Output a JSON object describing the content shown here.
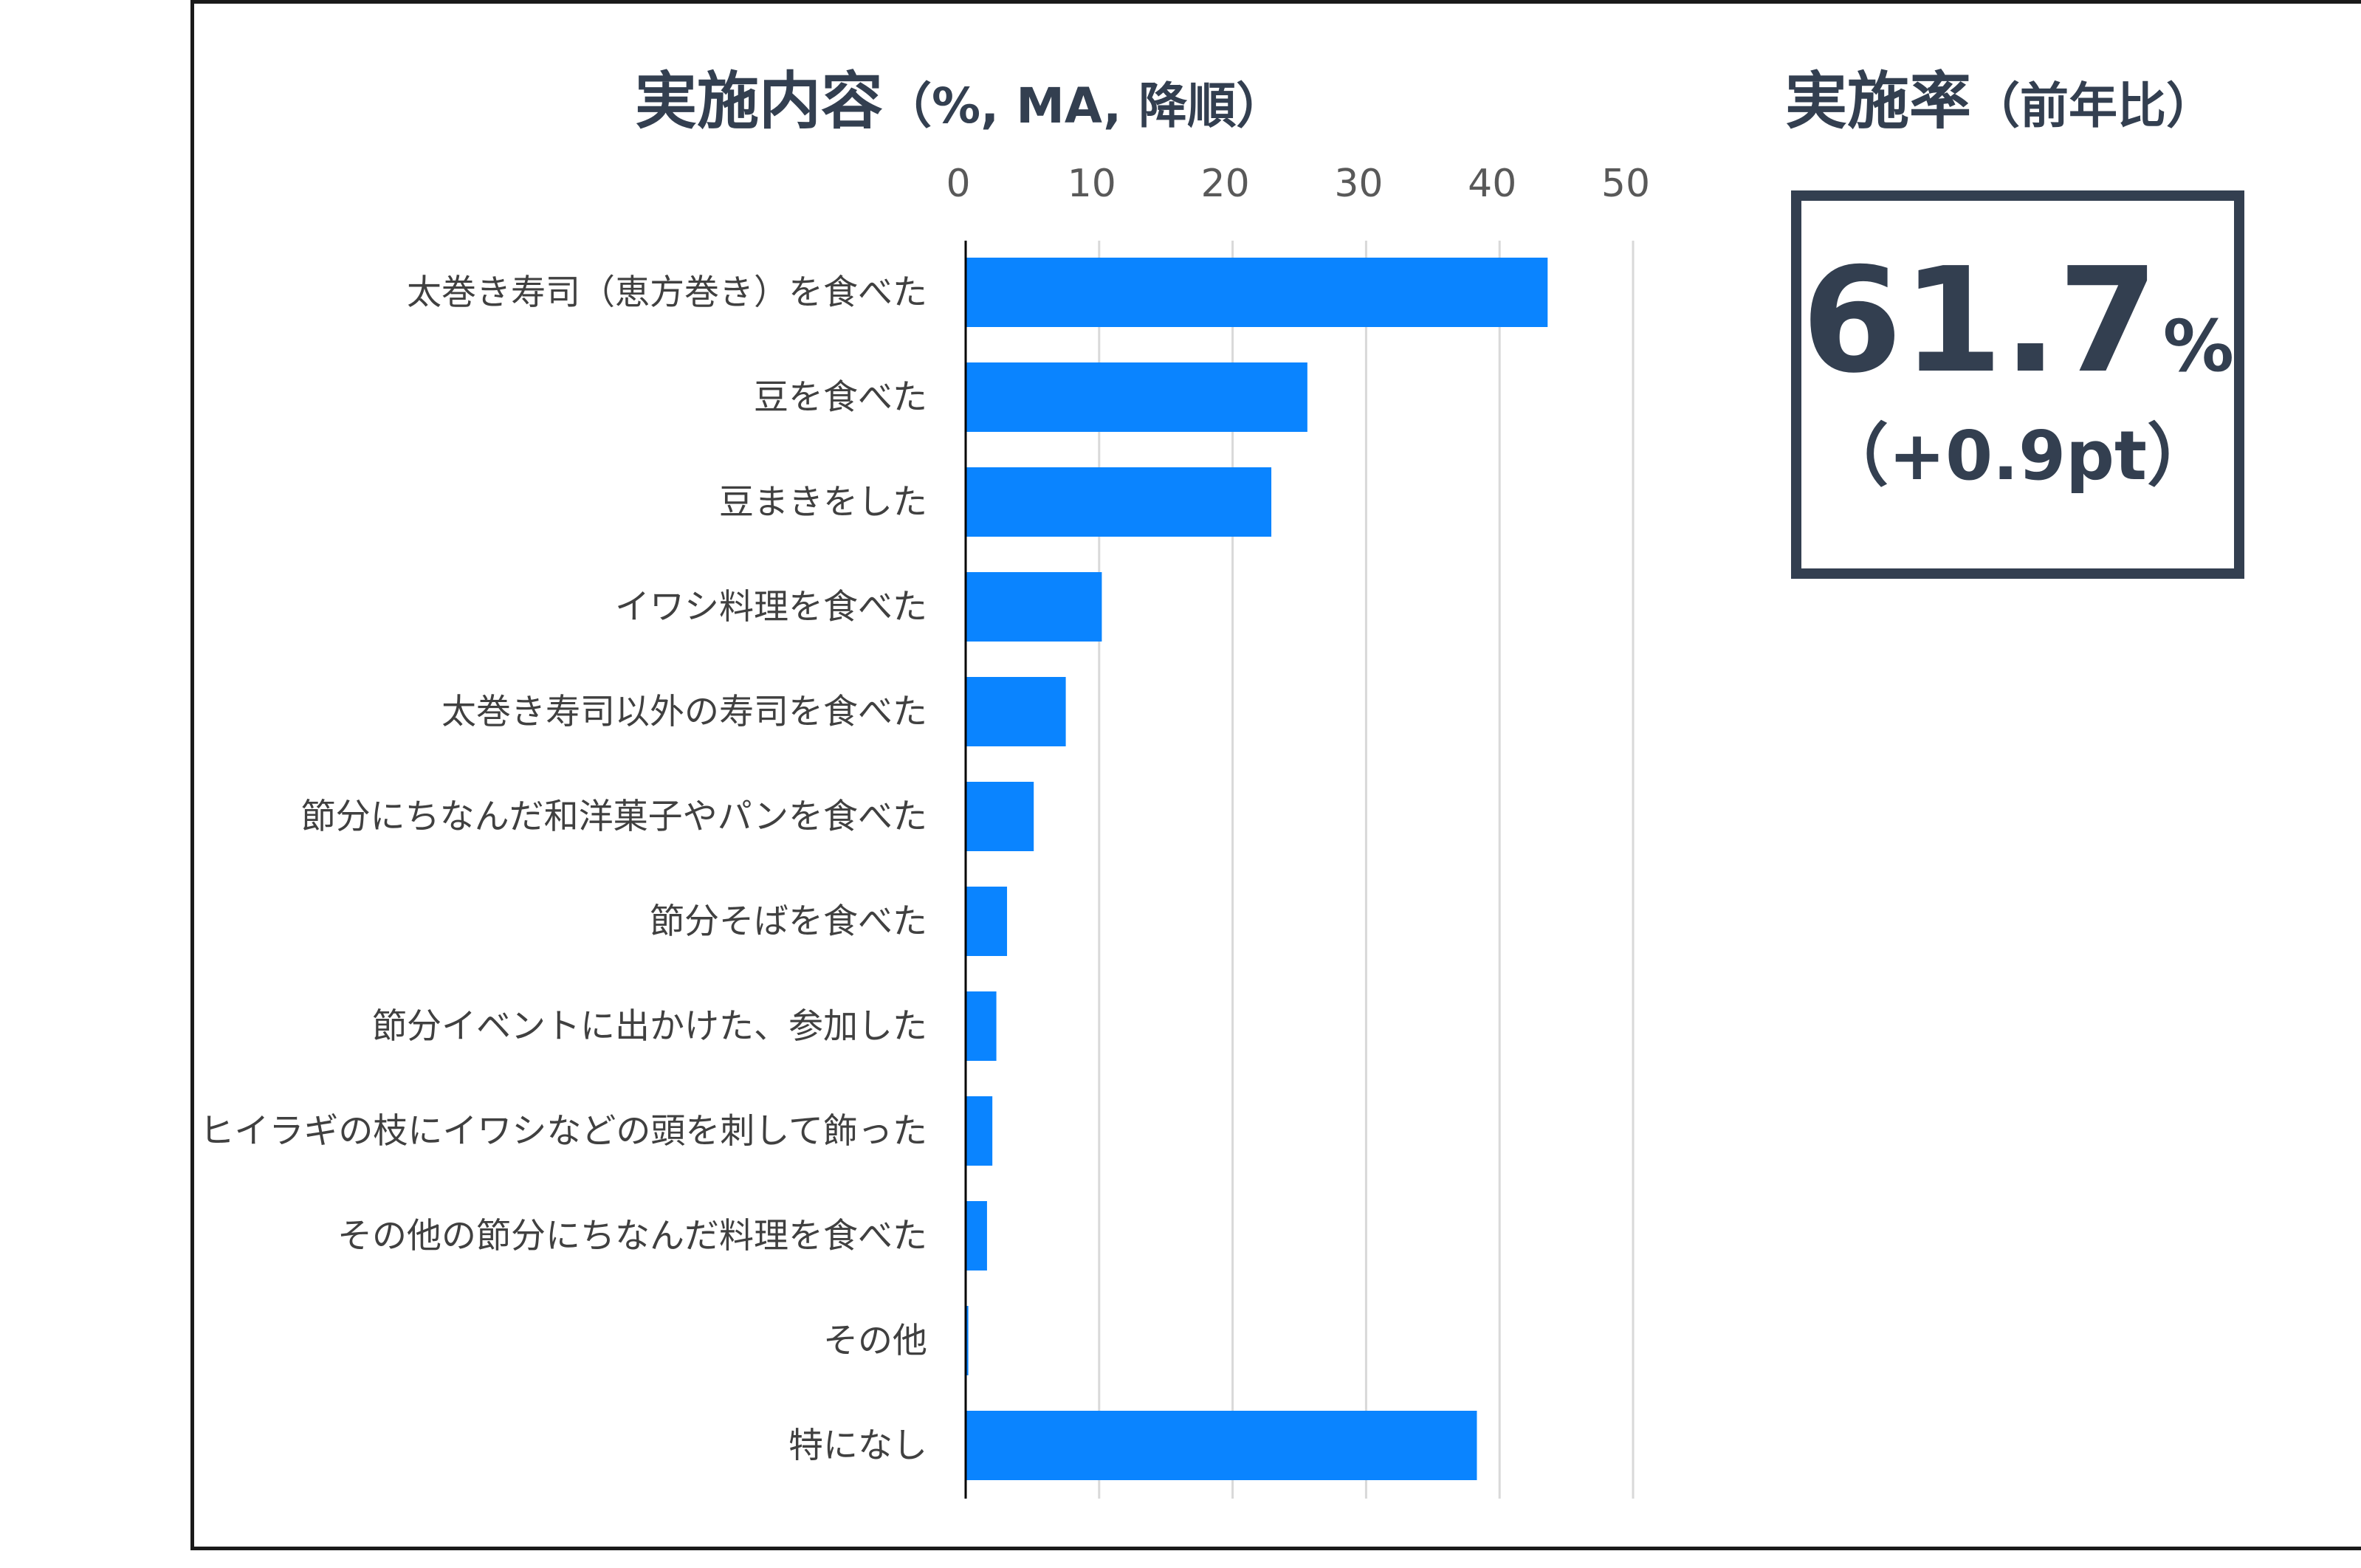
{
  "title": {
    "main": "実施内容",
    "sub": "（%, MA, 降順）"
  },
  "rate": {
    "title_main": "実施率",
    "title_sub": "（前年比）",
    "value": "61.7",
    "unit": "%",
    "change": "（+0.9pt）"
  },
  "colors": {
    "bar": "#0a84ff",
    "text_dark": "#333f50",
    "grid": "#d9d9d9",
    "axis": "#000000"
  },
  "chart_data": {
    "type": "bar",
    "orientation": "horizontal",
    "title": "実施内容（%, MA, 降順）",
    "categories": [
      "太巻き寿司（恵方巻き）を食べた",
      "豆を食べた",
      "豆まきをした",
      "イワシ料理を食べた",
      "太巻き寿司以外の寿司を食べた",
      "節分にちなんだ和洋菓子やパンを食べた",
      "節分そばを食べた",
      "節分イベントに出かけた、参加した",
      "ヒイラギの枝にイワシなどの頭を刺して飾った",
      "その他の節分にちなんだ料理を食べた",
      "その他",
      "特になし"
    ],
    "values": [
      43.6,
      25.6,
      22.9,
      10.2,
      7.5,
      5.1,
      3.1,
      2.3,
      2.0,
      1.6,
      0.2,
      38.3
    ],
    "xlim": [
      0,
      50
    ],
    "xticks": [
      0,
      10,
      20,
      30,
      40,
      50
    ],
    "axis_position": "top",
    "grid": true,
    "legend": "none"
  }
}
